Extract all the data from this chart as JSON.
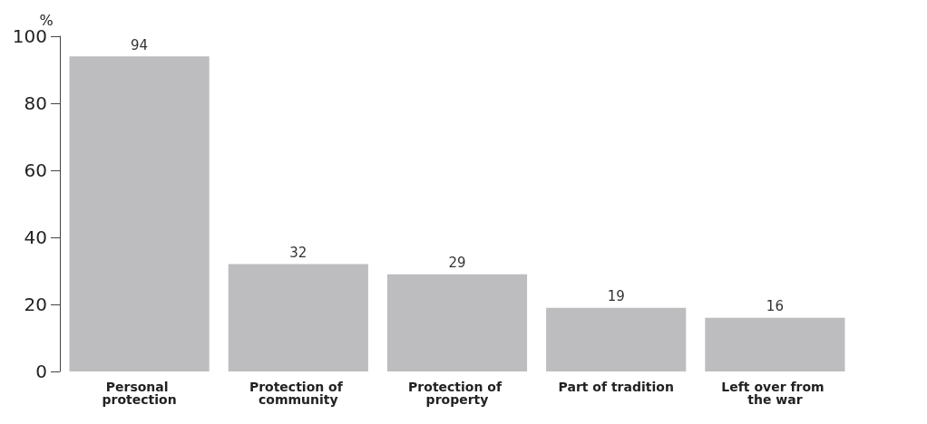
{
  "chart_data": {
    "type": "bar",
    "ylabel": "%",
    "categories": [
      "Personal protection",
      "Protection of community",
      "Protection of property",
      "Part of tradition",
      "Left over from the war"
    ],
    "values": [
      94,
      32,
      29,
      19,
      16
    ],
    "color": "#bdbdbf",
    "data_labels": true,
    "ylim": [
      0,
      100
    ],
    "yticks": [
      0,
      20,
      40,
      60,
      80,
      100
    ],
    "grid": false
  }
}
